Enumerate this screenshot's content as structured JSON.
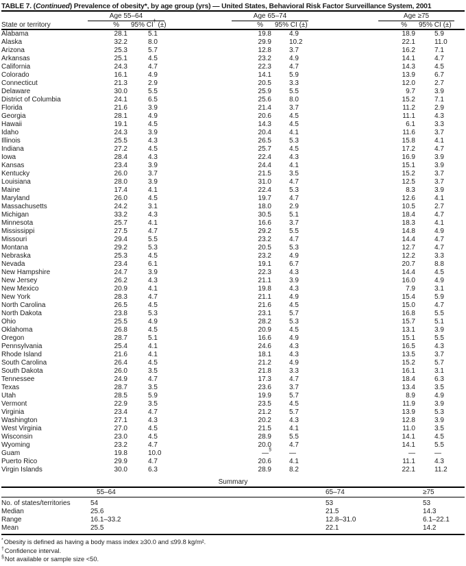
{
  "title": {
    "part1": "TABLE 7. (",
    "continued": "Continued",
    "part2": ") Prevalence of obesity*, by age group (yrs) — United States, Behavioral Risk Factor Surveillance System, 2001"
  },
  "header": {
    "state_col": "State or territory",
    "groups": [
      {
        "label": "Age 55–64",
        "pct": "%",
        "ci": "95% CI† (±)"
      },
      {
        "label": "Age 65–74",
        "pct": "%",
        "ci": "95% CI (±)"
      },
      {
        "label": "Age ≥75",
        "pct": "%",
        "ci": "95% CI (±)"
      }
    ]
  },
  "rows": [
    {
      "state": "Alabama",
      "g1": [
        "28.1",
        "5.1"
      ],
      "g2": [
        "19.8",
        "4.9"
      ],
      "g3": [
        "18.9",
        "5.9"
      ]
    },
    {
      "state": "Alaska",
      "g1": [
        "32.2",
        "8.0"
      ],
      "g2": [
        "29.9",
        "10.2"
      ],
      "g3": [
        "22.1",
        "11.0"
      ]
    },
    {
      "state": "Arizona",
      "g1": [
        "25.3",
        "5.7"
      ],
      "g2": [
        "12.8",
        "3.7"
      ],
      "g3": [
        "16.2",
        "7.1"
      ]
    },
    {
      "state": "Arkansas",
      "g1": [
        "25.1",
        "4.5"
      ],
      "g2": [
        "23.2",
        "4.9"
      ],
      "g3": [
        "14.1",
        "4.7"
      ]
    },
    {
      "state": "California",
      "g1": [
        "24.3",
        "4.7"
      ],
      "g2": [
        "22.3",
        "4.7"
      ],
      "g3": [
        "14.3",
        "4.5"
      ]
    },
    {
      "state": "Colorado",
      "g1": [
        "16.1",
        "4.9"
      ],
      "g2": [
        "14.1",
        "5.9"
      ],
      "g3": [
        "13.9",
        "6.7"
      ]
    },
    {
      "state": "Connecticut",
      "g1": [
        "21.3",
        "2.9"
      ],
      "g2": [
        "20.5",
        "3.3"
      ],
      "g3": [
        "12.0",
        "2.7"
      ]
    },
    {
      "state": "Delaware",
      "g1": [
        "30.0",
        "5.5"
      ],
      "g2": [
        "25.9",
        "5.5"
      ],
      "g3": [
        "9.7",
        "3.9"
      ]
    },
    {
      "state": "District of Columbia",
      "g1": [
        "24.1",
        "6.5"
      ],
      "g2": [
        "25.6",
        "8.0"
      ],
      "g3": [
        "15.2",
        "7.1"
      ]
    },
    {
      "state": "Florida",
      "g1": [
        "21.6",
        "3.9"
      ],
      "g2": [
        "21.4",
        "3.7"
      ],
      "g3": [
        "11.2",
        "2.9"
      ]
    },
    {
      "state": "Georgia",
      "g1": [
        "28.1",
        "4.9"
      ],
      "g2": [
        "20.6",
        "4.5"
      ],
      "g3": [
        "11.1",
        "4.3"
      ]
    },
    {
      "state": "Hawaii",
      "g1": [
        "19.1",
        "4.5"
      ],
      "g2": [
        "14.3",
        "4.5"
      ],
      "g3": [
        "6.1",
        "3.3"
      ]
    },
    {
      "state": "Idaho",
      "g1": [
        "24.3",
        "3.9"
      ],
      "g2": [
        "20.4",
        "4.1"
      ],
      "g3": [
        "11.6",
        "3.7"
      ]
    },
    {
      "state": "Illinois",
      "g1": [
        "25.5",
        "4.3"
      ],
      "g2": [
        "26.5",
        "5.3"
      ],
      "g3": [
        "15.8",
        "4.1"
      ]
    },
    {
      "state": "Indiana",
      "g1": [
        "27.2",
        "4.5"
      ],
      "g2": [
        "25.7",
        "4.5"
      ],
      "g3": [
        "17.2",
        "4.7"
      ]
    },
    {
      "state": "Iowa",
      "g1": [
        "28.4",
        "4.3"
      ],
      "g2": [
        "22.4",
        "4.3"
      ],
      "g3": [
        "16.9",
        "3.9"
      ]
    },
    {
      "state": "Kansas",
      "g1": [
        "23.4",
        "3.9"
      ],
      "g2": [
        "24.4",
        "4.1"
      ],
      "g3": [
        "15.1",
        "3.9"
      ]
    },
    {
      "state": "Kentucky",
      "g1": [
        "26.0",
        "3.7"
      ],
      "g2": [
        "21.5",
        "3.5"
      ],
      "g3": [
        "15.2",
        "3.7"
      ]
    },
    {
      "state": "Louisiana",
      "g1": [
        "28.0",
        "3.9"
      ],
      "g2": [
        "31.0",
        "4.7"
      ],
      "g3": [
        "12.5",
        "3.7"
      ]
    },
    {
      "state": "Maine",
      "g1": [
        "17.4",
        "4.1"
      ],
      "g2": [
        "22.4",
        "5.3"
      ],
      "g3": [
        "8.3",
        "3.9"
      ]
    },
    {
      "state": "Maryland",
      "g1": [
        "26.0",
        "4.5"
      ],
      "g2": [
        "19.7",
        "4.7"
      ],
      "g3": [
        "12.6",
        "4.1"
      ]
    },
    {
      "state": "Massachusetts",
      "g1": [
        "24.2",
        "3.1"
      ],
      "g2": [
        "18.0",
        "2.9"
      ],
      "g3": [
        "10.5",
        "2.7"
      ]
    },
    {
      "state": "Michigan",
      "g1": [
        "33.2",
        "4.3"
      ],
      "g2": [
        "30.5",
        "5.1"
      ],
      "g3": [
        "18.4",
        "4.7"
      ]
    },
    {
      "state": "Minnesota",
      "g1": [
        "25.7",
        "4.1"
      ],
      "g2": [
        "16.6",
        "3.7"
      ],
      "g3": [
        "18.3",
        "4.1"
      ]
    },
    {
      "state": "Mississippi",
      "g1": [
        "27.5",
        "4.7"
      ],
      "g2": [
        "29.2",
        "5.5"
      ],
      "g3": [
        "14.8",
        "4.9"
      ]
    },
    {
      "state": "Missouri",
      "g1": [
        "29.4",
        "5.5"
      ],
      "g2": [
        "23.2",
        "4.7"
      ],
      "g3": [
        "14.4",
        "4.7"
      ]
    },
    {
      "state": "Montana",
      "g1": [
        "29.2",
        "5.3"
      ],
      "g2": [
        "20.5",
        "5.3"
      ],
      "g3": [
        "12.7",
        "4.7"
      ]
    },
    {
      "state": "Nebraska",
      "g1": [
        "25.3",
        "4.5"
      ],
      "g2": [
        "23.2",
        "4.9"
      ],
      "g3": [
        "12.2",
        "3.3"
      ]
    },
    {
      "state": "Nevada",
      "g1": [
        "23.4",
        "6.1"
      ],
      "g2": [
        "19.1",
        "6.7"
      ],
      "g3": [
        "20.7",
        "8.8"
      ]
    },
    {
      "state": "New Hampshire",
      "g1": [
        "24.7",
        "3.9"
      ],
      "g2": [
        "22.3",
        "4.3"
      ],
      "g3": [
        "14.4",
        "4.5"
      ]
    },
    {
      "state": "New Jersey",
      "g1": [
        "26.2",
        "4.3"
      ],
      "g2": [
        "21.1",
        "3.9"
      ],
      "g3": [
        "16.0",
        "4.9"
      ]
    },
    {
      "state": "New Mexico",
      "g1": [
        "20.9",
        "4.1"
      ],
      "g2": [
        "19.8",
        "4.3"
      ],
      "g3": [
        "7.9",
        "3.1"
      ]
    },
    {
      "state": "New York",
      "g1": [
        "28.3",
        "4.7"
      ],
      "g2": [
        "21.1",
        "4.9"
      ],
      "g3": [
        "15.4",
        "5.9"
      ]
    },
    {
      "state": "North Carolina",
      "g1": [
        "26.5",
        "4.5"
      ],
      "g2": [
        "21.6",
        "4.5"
      ],
      "g3": [
        "15.0",
        "4.7"
      ]
    },
    {
      "state": "North Dakota",
      "g1": [
        "23.8",
        "5.3"
      ],
      "g2": [
        "23.1",
        "5.7"
      ],
      "g3": [
        "16.8",
        "5.5"
      ]
    },
    {
      "state": "Ohio",
      "g1": [
        "25.5",
        "4.9"
      ],
      "g2": [
        "28.2",
        "5.3"
      ],
      "g3": [
        "15.7",
        "5.1"
      ]
    },
    {
      "state": "Oklahoma",
      "g1": [
        "26.8",
        "4.5"
      ],
      "g2": [
        "20.9",
        "4.5"
      ],
      "g3": [
        "13.1",
        "3.9"
      ]
    },
    {
      "state": "Oregon",
      "g1": [
        "28.7",
        "5.1"
      ],
      "g2": [
        "16.6",
        "4.9"
      ],
      "g3": [
        "15.1",
        "5.5"
      ]
    },
    {
      "state": "Pennsylvania",
      "g1": [
        "25.4",
        "4.1"
      ],
      "g2": [
        "24.6",
        "4.3"
      ],
      "g3": [
        "16.5",
        "4.3"
      ]
    },
    {
      "state": "Rhode Island",
      "g1": [
        "21.6",
        "4.1"
      ],
      "g2": [
        "18.1",
        "4.3"
      ],
      "g3": [
        "13.5",
        "3.7"
      ]
    },
    {
      "state": "South Carolina",
      "g1": [
        "26.4",
        "4.5"
      ],
      "g2": [
        "21.2",
        "4.9"
      ],
      "g3": [
        "15.2",
        "5.7"
      ]
    },
    {
      "state": "South Dakota",
      "g1": [
        "26.0",
        "3.5"
      ],
      "g2": [
        "21.8",
        "3.3"
      ],
      "g3": [
        "16.1",
        "3.1"
      ]
    },
    {
      "state": "Tennessee",
      "g1": [
        "24.9",
        "4.7"
      ],
      "g2": [
        "17.3",
        "4.7"
      ],
      "g3": [
        "18.4",
        "6.3"
      ]
    },
    {
      "state": "Texas",
      "g1": [
        "28.7",
        "3.5"
      ],
      "g2": [
        "23.6",
        "3.7"
      ],
      "g3": [
        "13.4",
        "3.5"
      ]
    },
    {
      "state": "Utah",
      "g1": [
        "28.5",
        "5.9"
      ],
      "g2": [
        "19.9",
        "5.7"
      ],
      "g3": [
        "8.9",
        "4.9"
      ]
    },
    {
      "state": "Vermont",
      "g1": [
        "22.9",
        "3.5"
      ],
      "g2": [
        "23.5",
        "4.5"
      ],
      "g3": [
        "11.9",
        "3.9"
      ]
    },
    {
      "state": "Virginia",
      "g1": [
        "23.4",
        "4.7"
      ],
      "g2": [
        "21.2",
        "5.7"
      ],
      "g3": [
        "13.9",
        "5.3"
      ]
    },
    {
      "state": "Washington",
      "g1": [
        "27.1",
        "4.3"
      ],
      "g2": [
        "20.2",
        "4.3"
      ],
      "g3": [
        "12.8",
        "3.9"
      ]
    },
    {
      "state": "West Virginia",
      "g1": [
        "27.0",
        "4.5"
      ],
      "g2": [
        "21.5",
        "4.1"
      ],
      "g3": [
        "11.0",
        "3.5"
      ]
    },
    {
      "state": "Wisconsin",
      "g1": [
        "23.0",
        "4.5"
      ],
      "g2": [
        "28.9",
        "5.5"
      ],
      "g3": [
        "14.1",
        "4.5"
      ]
    },
    {
      "state": "Wyoming",
      "g1": [
        "23.2",
        "4.7"
      ],
      "g2": [
        "20.0",
        "4.7"
      ],
      "g3": [
        "14.1",
        "5.5"
      ]
    },
    {
      "state": "Guam",
      "g1": [
        "19.8",
        "10.0"
      ],
      "g2": [
        "—§",
        "—"
      ],
      "g3": [
        "—",
        "—"
      ]
    },
    {
      "state": "Puerto Rico",
      "g1": [
        "29.9",
        "4.7"
      ],
      "g2": [
        "20.6",
        "4.1"
      ],
      "g3": [
        "11.1",
        "4.3"
      ]
    },
    {
      "state": "Virgin Islands",
      "g1": [
        "30.0",
        "6.3"
      ],
      "g2": [
        "28.9",
        "8.2"
      ],
      "g3": [
        "22.1",
        "11.2"
      ]
    }
  ],
  "summary": {
    "title": "Summary",
    "columns": [
      "55–64",
      "65–74",
      "≥75"
    ],
    "rows": [
      {
        "label": "No. of states/territories",
        "values": [
          "54",
          "53",
          "53"
        ]
      },
      {
        "label": "Median",
        "values": [
          "25.6",
          "21.5",
          "14.3"
        ]
      },
      {
        "label": "Range",
        "values": [
          "16.1–33.2",
          "12.8–31.0",
          "6.1–22.1"
        ]
      },
      {
        "label": "Mean",
        "values": [
          "25.5",
          "22.1",
          "14.2"
        ]
      }
    ]
  },
  "footnotes": [
    {
      "marker": "*",
      "text": "Obesity is defined as having a body mass index ≥30.0 and ≤99.8 kg/m²."
    },
    {
      "marker": "†",
      "text": "Confidence interval."
    },
    {
      "marker": "§",
      "text": "Not available or sample size <50."
    }
  ]
}
